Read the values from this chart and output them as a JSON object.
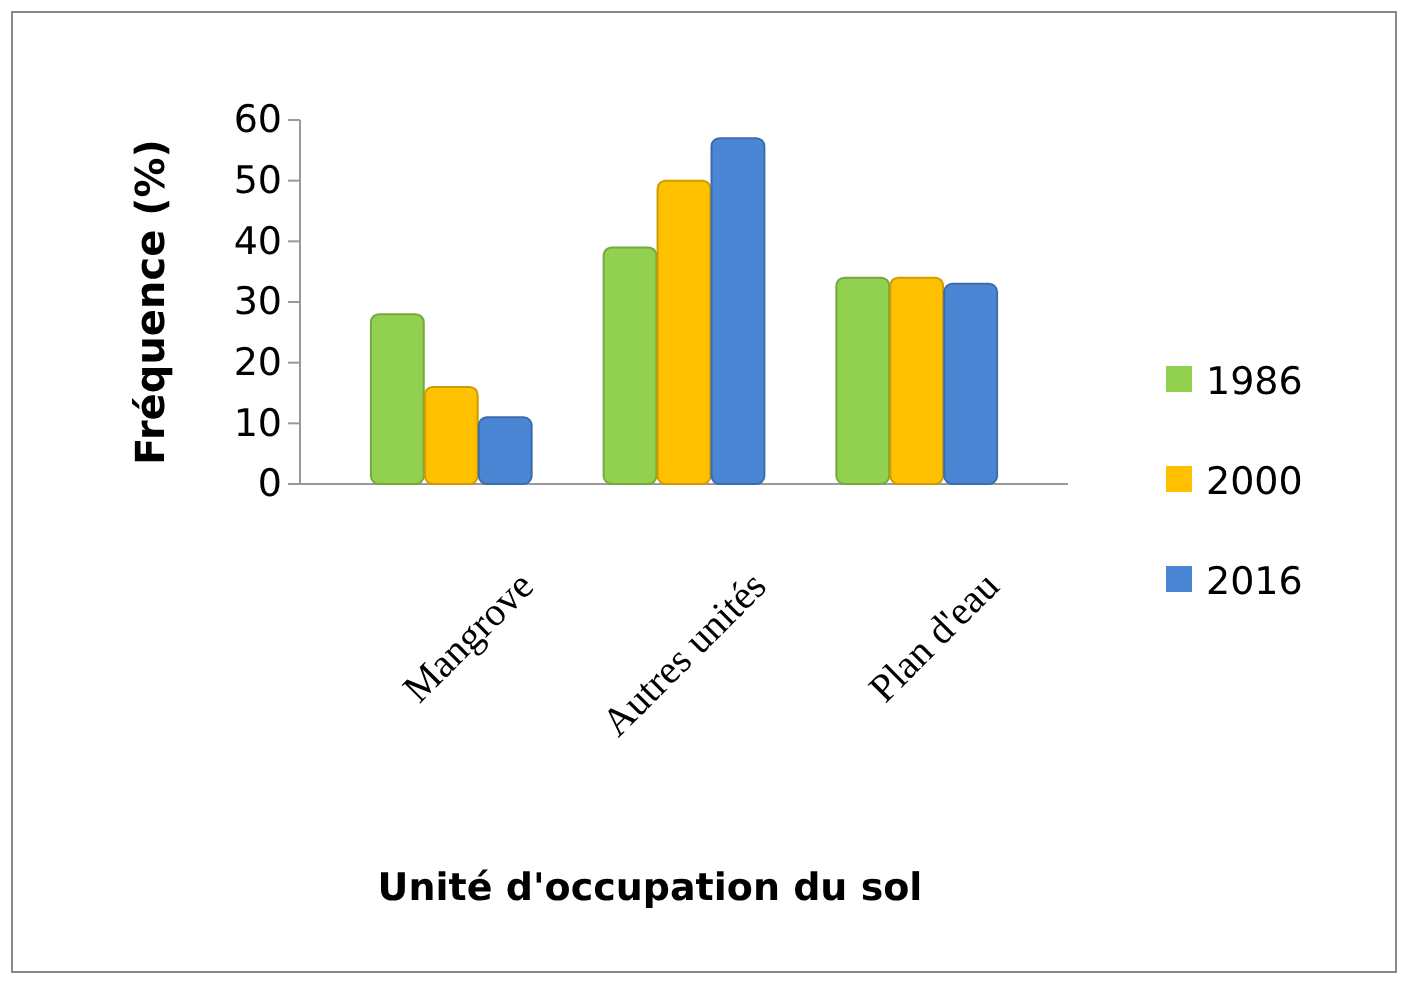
{
  "chart_data": {
    "type": "bar",
    "xlabel": "Unité d'occupation du sol",
    "ylabel": "Fréquence (%)",
    "categories": [
      "Mangrove",
      "Autres unités",
      "Plan d'eau"
    ],
    "series": [
      {
        "name": "1986",
        "color": "#92d050",
        "values": [
          28,
          39,
          34
        ]
      },
      {
        "name": "2000",
        "color": "#ffc000",
        "values": [
          16,
          50,
          34
        ]
      },
      {
        "name": "2016",
        "color": "#4a86d4",
        "values": [
          11,
          57,
          33
        ]
      }
    ],
    "ylim": [
      0,
      60
    ],
    "yticks": [
      0,
      10,
      20,
      30,
      40,
      50,
      60
    ],
    "grid": false,
    "legend": "right"
  }
}
